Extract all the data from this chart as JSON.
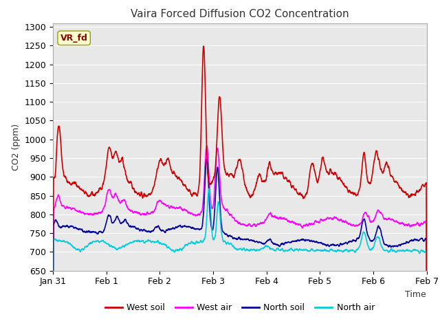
{
  "title": "Vaira Forced Diffusion CO2 Concentration",
  "xlabel": "Time",
  "ylabel": "CO2 (ppm)",
  "ylim": [
    650,
    1310
  ],
  "yticks": [
    650,
    700,
    750,
    800,
    850,
    900,
    950,
    1000,
    1050,
    1100,
    1150,
    1200,
    1250,
    1300
  ],
  "annotation": "VR_fd",
  "colors": {
    "west_soil": "#cc0000",
    "west_air": "#ff00ff",
    "north_soil": "#000099",
    "north_air": "#00ccdd"
  },
  "fig_bg": "#ffffff",
  "plot_bg": "#e8e8e8",
  "grid_color": "#ffffff",
  "n_points": 2016,
  "tick_labels": [
    "Jan 31",
    "Feb 1",
    "Feb 2",
    "Feb 3",
    "Feb 4",
    "Feb 5",
    "Feb 6",
    "Feb 7"
  ],
  "tick_positions": [
    0,
    1,
    2,
    3,
    4,
    5,
    6,
    7
  ]
}
